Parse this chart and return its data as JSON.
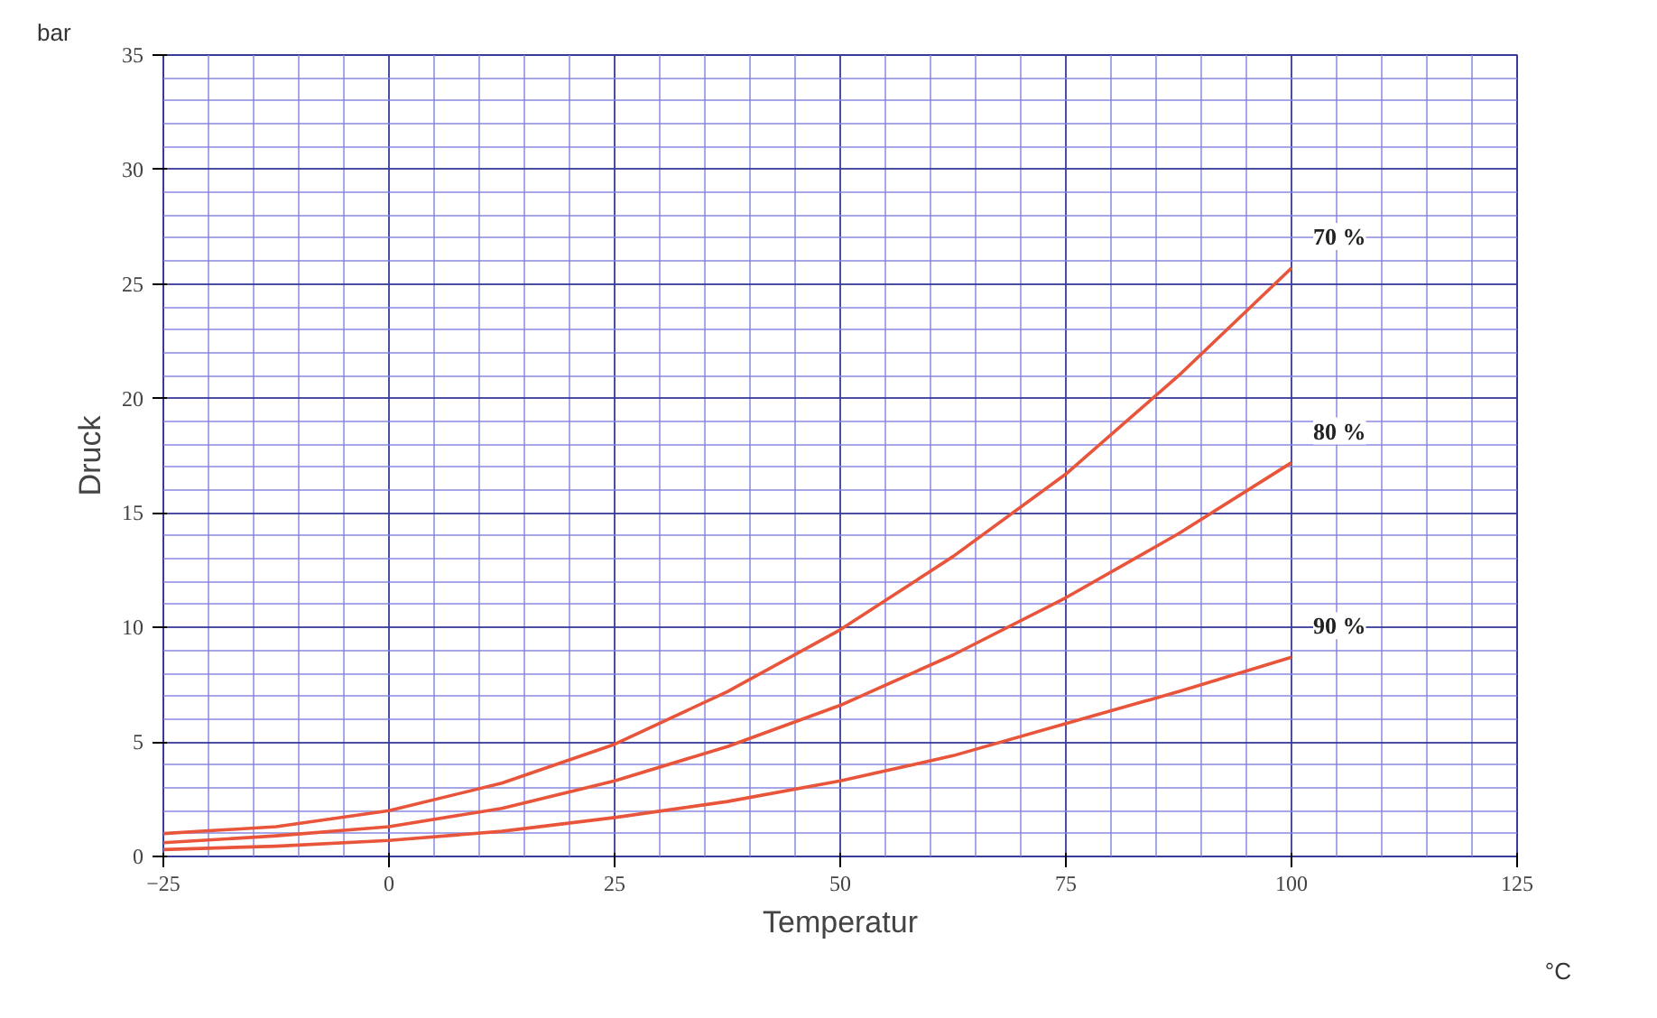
{
  "chart_data": {
    "type": "line",
    "xlabel": "Temperatur",
    "ylabel": "Druck",
    "annotations": [
      "bar",
      "°C"
    ],
    "x": [
      -25,
      -12.5,
      0,
      12.5,
      25,
      37.5,
      50,
      62.5,
      75,
      87.5,
      100
    ],
    "series": [
      {
        "name": "70 %",
        "color": "#e8553a",
        "values": [
          1.0,
          1.3,
          2.0,
          3.2,
          4.9,
          7.2,
          9.9,
          13.1,
          16.7,
          21.0,
          25.7
        ]
      },
      {
        "name": "80 %",
        "color": "#e8553a",
        "values": [
          0.6,
          0.9,
          1.3,
          2.1,
          3.3,
          4.8,
          6.6,
          8.8,
          11.3,
          14.1,
          17.2
        ]
      },
      {
        "name": "90 %",
        "color": "#e8553a",
        "values": [
          0.3,
          0.45,
          0.7,
          1.1,
          1.7,
          2.4,
          3.3,
          4.4,
          5.8,
          7.2,
          8.7
        ]
      }
    ],
    "xlim": [
      -25,
      125
    ],
    "ylim": [
      0,
      35
    ],
    "xticks": [
      -25,
      {
        "value": -20,
        "label": null
      },
      {
        "value": -15,
        "label": null
      },
      {
        "value": -10,
        "label": null
      },
      {
        "value": -5,
        "label": null
      },
      0,
      {
        "value": 5,
        "label": null
      },
      {
        "value": 10,
        "label": null
      },
      {
        "value": 15,
        "label": null
      },
      {
        "value": 20,
        "label": null
      },
      25,
      {
        "value": 30,
        "label": null
      },
      {
        "value": 35,
        "label": null
      },
      {
        "value": 40,
        "label": null
      },
      {
        "value": 45,
        "label": null
      },
      50,
      {
        "value": 55,
        "label": null
      },
      {
        "value": 60,
        "label": null
      },
      {
        "value": 65,
        "label": null
      },
      {
        "value": 70,
        "label": null
      },
      75,
      {
        "value": 80,
        "label": null
      },
      {
        "value": 85,
        "label": null
      },
      {
        "value": 90,
        "label": null
      },
      {
        "value": 95,
        "label": null
      },
      100,
      {
        "value": 105,
        "label": null
      },
      {
        "value": 110,
        "label": null
      },
      {
        "value": 115,
        "label": null
      },
      {
        "value": 120,
        "label": null
      },
      125
    ],
    "yticks": [
      0,
      {
        "value": 1,
        "label": null
      },
      {
        "value": 2,
        "label": null
      },
      {
        "value": 3,
        "label": null
      },
      {
        "value": 4,
        "label": null
      },
      5,
      {
        "value": 6,
        "label": null
      },
      {
        "value": 7,
        "label": null
      },
      {
        "value": 8,
        "label": null
      },
      {
        "value": 9,
        "label": null
      },
      10,
      {
        "value": 11,
        "label": null
      },
      {
        "value": 12,
        "label": null
      },
      {
        "value": 13,
        "label": null
      },
      {
        "value": 14,
        "label": null
      },
      15,
      {
        "value": 16,
        "label": null
      },
      {
        "value": 17,
        "label": null
      },
      {
        "value": 18,
        "label": null
      },
      {
        "value": 19,
        "label": null
      },
      20,
      {
        "value": 21,
        "label": null
      },
      {
        "value": 22,
        "label": null
      },
      {
        "value": 23,
        "label": null
      },
      {
        "value": 24,
        "label": null
      },
      25,
      {
        "value": 26,
        "label": null
      },
      {
        "value": 27,
        "label": null
      },
      {
        "value": 28,
        "label": null
      },
      {
        "value": 29,
        "label": null
      },
      30,
      {
        "value": 31,
        "label": null
      },
      {
        "value": 32,
        "label": null
      },
      {
        "value": 33,
        "label": null
      },
      {
        "value": 34,
        "label": null
      },
      35
    ],
    "grid": true,
    "legend": false,
    "line_style": "solid"
  }
}
